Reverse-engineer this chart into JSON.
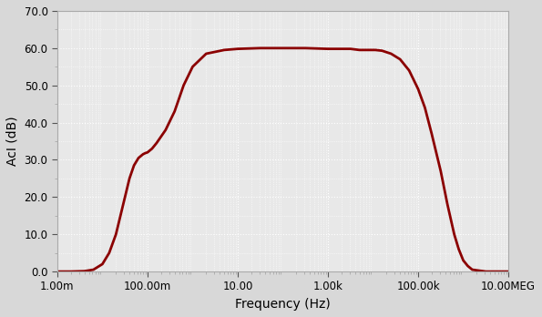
{
  "title": "",
  "xlabel": "Frequency (Hz)",
  "ylabel": "AcI (dB)",
  "line_color": "#8B0000",
  "line_width": 2.0,
  "ylim": [
    0.0,
    70.0
  ],
  "yticks": [
    0.0,
    10.0,
    20.0,
    30.0,
    40.0,
    50.0,
    60.0,
    70.0
  ],
  "xtick_labels": [
    "1.00m",
    "100.00m",
    "10.00",
    "1.00k",
    "100.00k",
    "10.00MEG"
  ],
  "xtick_positions": [
    0.001,
    0.1,
    10.0,
    1000.0,
    100000.0,
    10000000.0
  ],
  "background_color": "#e8e8e8",
  "grid_color": "#ffffff",
  "curve_points_log_freq": [
    -3.0,
    -2.7,
    -2.4,
    -2.2,
    -2.0,
    -1.85,
    -1.7,
    -1.6,
    -1.5,
    -1.4,
    -1.3,
    -1.2,
    -1.15,
    -1.1,
    -1.05,
    -1.0,
    -0.9,
    -0.8,
    -0.6,
    -0.4,
    -0.2,
    0.0,
    0.3,
    0.7,
    1.0,
    1.5,
    2.0,
    2.5,
    3.0,
    3.2,
    3.5,
    3.7,
    3.9,
    4.05,
    4.2,
    4.4,
    4.6,
    4.8,
    5.0,
    5.15,
    5.3,
    5.5,
    5.65,
    5.8,
    5.9,
    6.0,
    6.1,
    6.2,
    6.5,
    7.0
  ],
  "curve_points_dB": [
    0.0,
    0.0,
    0.1,
    0.5,
    2.0,
    5.0,
    10.0,
    15.0,
    20.0,
    25.0,
    28.5,
    30.5,
    31.0,
    31.5,
    31.8,
    32.0,
    33.0,
    34.5,
    38.0,
    43.0,
    50.0,
    55.0,
    58.5,
    59.5,
    59.8,
    60.0,
    60.0,
    60.0,
    59.8,
    59.8,
    59.8,
    59.5,
    59.5,
    59.5,
    59.3,
    58.5,
    57.0,
    54.0,
    49.0,
    44.0,
    37.0,
    27.0,
    18.0,
    10.0,
    6.0,
    3.0,
    1.5,
    0.5,
    0.0,
    0.0
  ]
}
